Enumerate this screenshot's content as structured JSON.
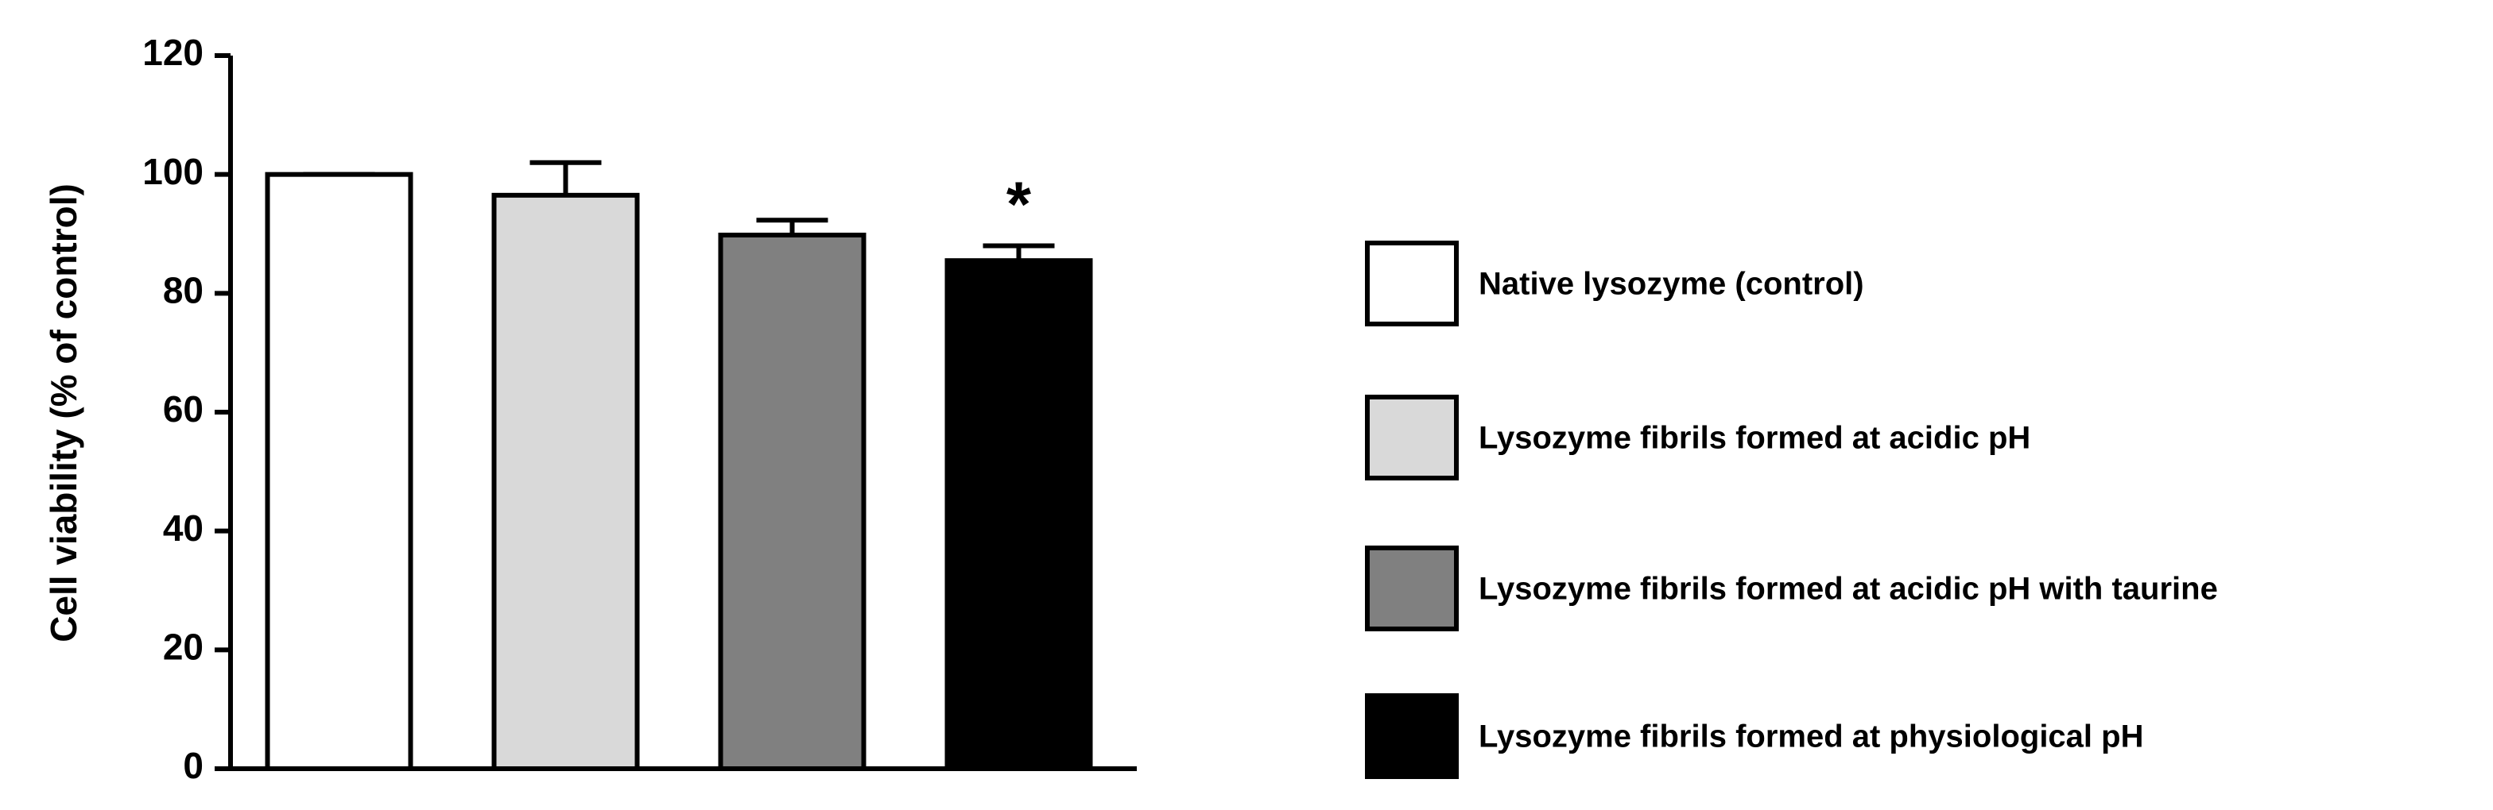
{
  "chart_data": {
    "type": "bar",
    "ylabel": "Cell viability (% of control)",
    "categories": [
      "Native lysozyme (control)",
      "Lysozyme fibrils formed at acidic pH",
      "Lysozyme fibrils formed at acidic pH with taurine",
      "Lysozyme fibrils formed at physiological pH"
    ],
    "values": [
      100,
      96.5,
      89.8,
      85.5
    ],
    "errors": [
      0,
      5.5,
      2.5,
      2.5
    ],
    "colors": [
      "#ffffff",
      "#d9d9d9",
      "#808080",
      "#000000"
    ],
    "annotations": [
      {
        "text": "*",
        "category": "Lysozyme fibrils formed at physiological pH"
      }
    ],
    "ylim": [
      0,
      120
    ],
    "yticks": [
      0,
      20,
      40,
      60,
      80,
      100,
      120
    ],
    "grid": false
  }
}
